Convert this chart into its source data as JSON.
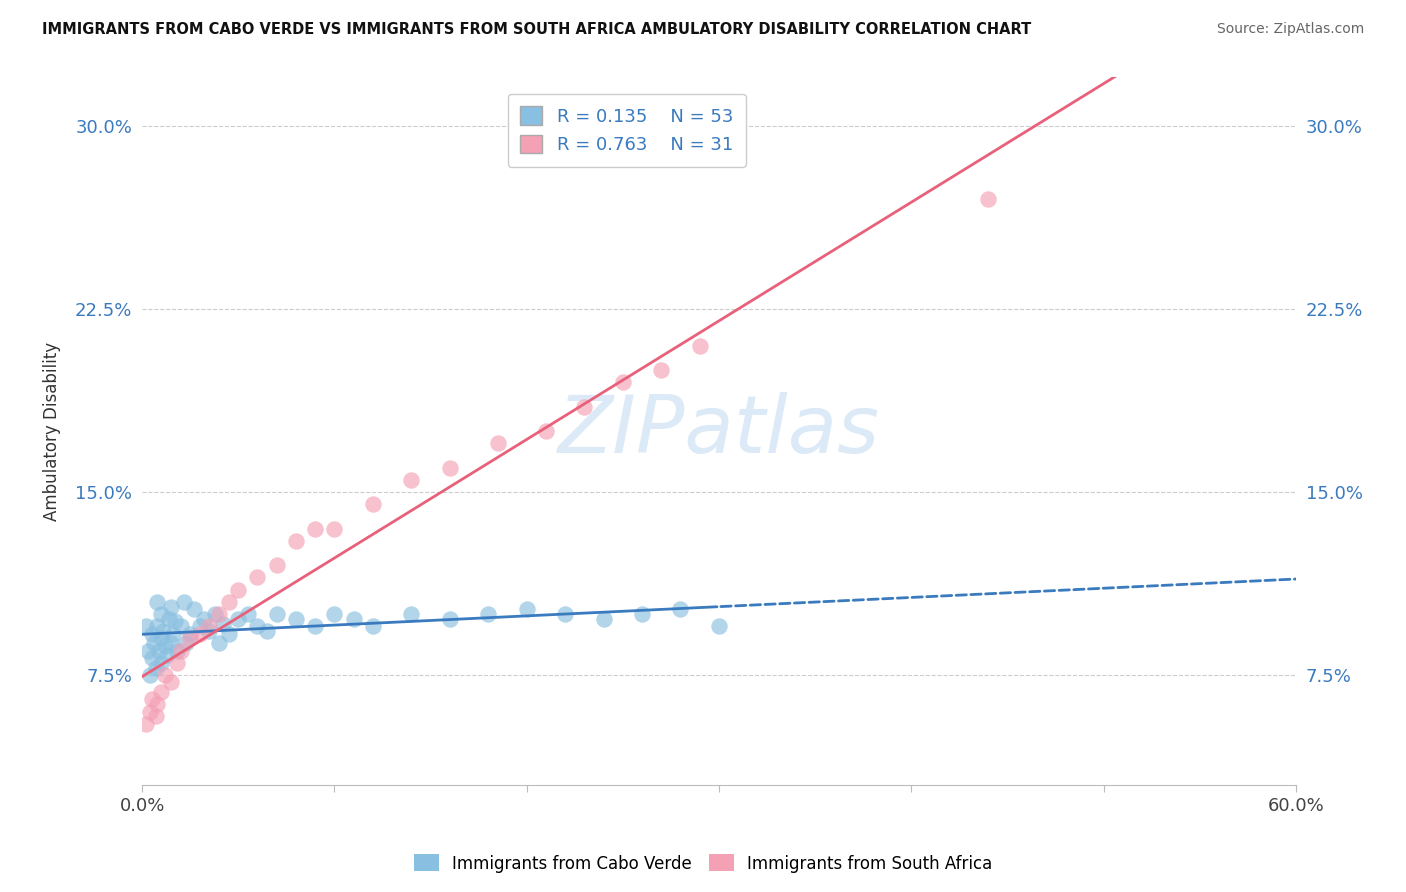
{
  "title": "IMMIGRANTS FROM CABO VERDE VS IMMIGRANTS FROM SOUTH AFRICA AMBULATORY DISABILITY CORRELATION CHART",
  "source": "Source: ZipAtlas.com",
  "ylabel": "Ambulatory Disability",
  "xlim": [
    0.0,
    0.6
  ],
  "ylim": [
    0.03,
    0.32
  ],
  "yticks": [
    0.075,
    0.15,
    0.225,
    0.3
  ],
  "ytick_labels": [
    "7.5%",
    "15.0%",
    "22.5%",
    "30.0%"
  ],
  "xticks": [
    0.0,
    0.1,
    0.2,
    0.3,
    0.4,
    0.5,
    0.6
  ],
  "xtick_labels": [
    "0.0%",
    "",
    "",
    "",
    "",
    "",
    "60.0%"
  ],
  "cabo_verde_R": 0.135,
  "cabo_verde_N": 53,
  "south_africa_R": 0.763,
  "south_africa_N": 31,
  "cabo_verde_color": "#89bfe0",
  "south_africa_color": "#f4a0b5",
  "cabo_verde_line_color": "#3a7abf",
  "south_africa_line_color": "#e8607a",
  "watermark_color": "#dce9f7",
  "cabo_verde_x": [
    0.002,
    0.003,
    0.004,
    0.005,
    0.005,
    0.006,
    0.007,
    0.008,
    0.008,
    0.009,
    0.01,
    0.01,
    0.01,
    0.011,
    0.012,
    0.013,
    0.014,
    0.015,
    0.015,
    0.016,
    0.017,
    0.018,
    0.02,
    0.022,
    0.023,
    0.025,
    0.027,
    0.03,
    0.032,
    0.035,
    0.038,
    0.04,
    0.042,
    0.045,
    0.05,
    0.055,
    0.06,
    0.065,
    0.07,
    0.08,
    0.09,
    0.1,
    0.11,
    0.12,
    0.14,
    0.16,
    0.18,
    0.2,
    0.22,
    0.24,
    0.26,
    0.28,
    0.3
  ],
  "cabo_verde_y": [
    0.095,
    0.085,
    0.075,
    0.082,
    0.092,
    0.088,
    0.078,
    0.095,
    0.105,
    0.085,
    0.08,
    0.09,
    0.1,
    0.093,
    0.087,
    0.083,
    0.098,
    0.088,
    0.103,
    0.092,
    0.097,
    0.085,
    0.095,
    0.105,
    0.088,
    0.092,
    0.102,
    0.095,
    0.098,
    0.093,
    0.1,
    0.088,
    0.096,
    0.092,
    0.098,
    0.1,
    0.095,
    0.093,
    0.1,
    0.098,
    0.095,
    0.1,
    0.098,
    0.095,
    0.1,
    0.098,
    0.1,
    0.102,
    0.1,
    0.098,
    0.1,
    0.102,
    0.095
  ],
  "south_africa_x": [
    0.002,
    0.004,
    0.005,
    0.007,
    0.008,
    0.01,
    0.012,
    0.015,
    0.018,
    0.02,
    0.025,
    0.03,
    0.035,
    0.04,
    0.045,
    0.05,
    0.06,
    0.07,
    0.08,
    0.09,
    0.1,
    0.12,
    0.14,
    0.16,
    0.185,
    0.21,
    0.23,
    0.25,
    0.27,
    0.29,
    0.44
  ],
  "south_africa_y": [
    0.055,
    0.06,
    0.065,
    0.058,
    0.063,
    0.068,
    0.075,
    0.072,
    0.08,
    0.085,
    0.09,
    0.092,
    0.095,
    0.1,
    0.105,
    0.11,
    0.115,
    0.12,
    0.13,
    0.135,
    0.135,
    0.145,
    0.155,
    0.16,
    0.17,
    0.175,
    0.185,
    0.195,
    0.2,
    0.21,
    0.27
  ]
}
